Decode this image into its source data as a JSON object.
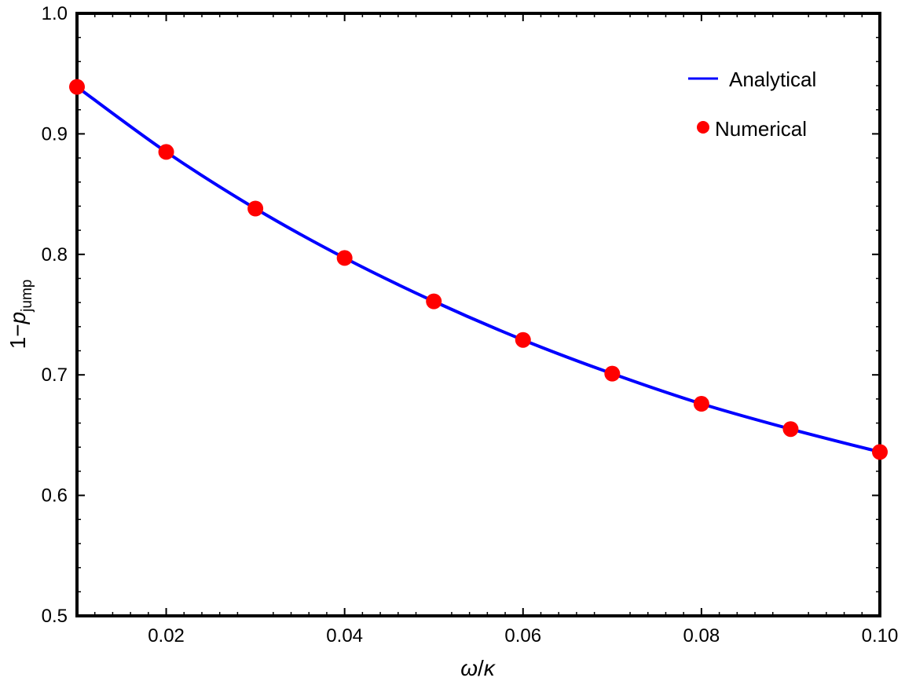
{
  "chart_data": {
    "type": "line",
    "title": "",
    "xlabel": {
      "symbol1": "ω",
      "slash": "/",
      "symbol2": "κ"
    },
    "ylabel": {
      "prefix": "1−",
      "var": "p",
      "sub": "jump"
    },
    "xlim": [
      0.01,
      0.1
    ],
    "ylim": [
      0.5,
      1.0
    ],
    "x_ticks": [
      "0.02",
      "0.04",
      "0.06",
      "0.08",
      "0.10"
    ],
    "y_ticks": [
      "0.5",
      "0.6",
      "0.7",
      "0.8",
      "0.9",
      "1.0"
    ],
    "grid": false,
    "legend_position": "top-right",
    "series": [
      {
        "name": "Analytical",
        "kind": "line",
        "color": "#0000ff",
        "x": [
          0.01,
          0.02,
          0.03,
          0.04,
          0.05,
          0.06,
          0.07,
          0.08,
          0.09,
          0.1
        ],
        "y": [
          0.939,
          0.885,
          0.838,
          0.797,
          0.761,
          0.729,
          0.701,
          0.676,
          0.655,
          0.636
        ]
      },
      {
        "name": "Numerical",
        "kind": "points",
        "color": "#ff0000",
        "x": [
          0.01,
          0.02,
          0.03,
          0.04,
          0.05,
          0.06,
          0.07,
          0.08,
          0.09,
          0.1
        ],
        "y": [
          0.939,
          0.885,
          0.838,
          0.797,
          0.761,
          0.729,
          0.701,
          0.676,
          0.655,
          0.636
        ]
      }
    ]
  }
}
